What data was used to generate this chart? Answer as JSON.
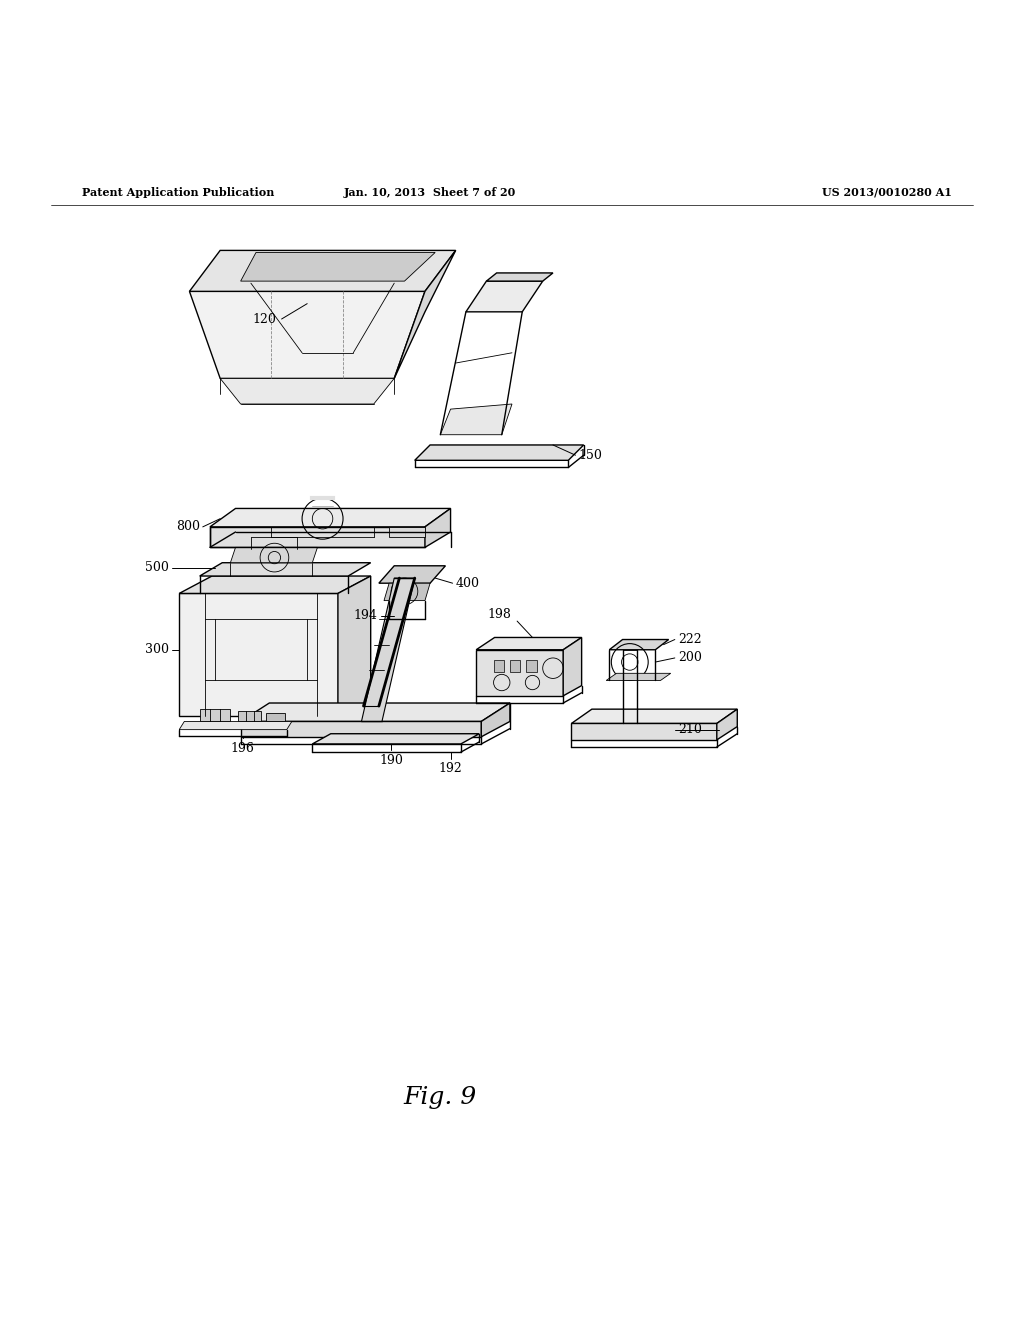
{
  "title_left": "Patent Application Publication",
  "title_mid": "Jan. 10, 2013  Sheet 7 of 20",
  "title_right": "US 2013/0010280 A1",
  "fig_label": "Fig. 9",
  "bg_color": "#ffffff",
  "line_color": "#000000",
  "text_color": "#000000",
  "label_fontsize": 9,
  "fig_fontsize": 18,
  "header_fontsize": 8
}
